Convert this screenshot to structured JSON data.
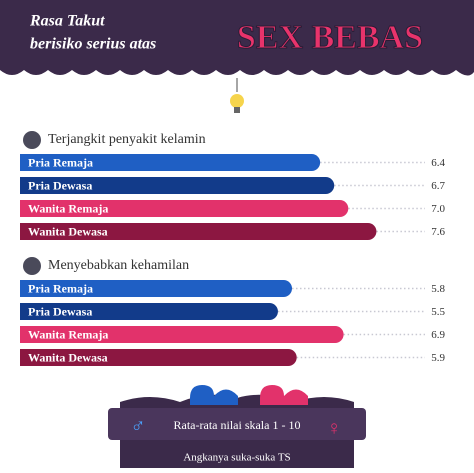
{
  "header": {
    "title_lines": [
      "Rasa Takut",
      "berisiko serius atas"
    ],
    "highlight": "SEX BEBAS"
  },
  "chart_data": [
    {
      "type": "bar",
      "title": "Terjangkit penyakit kelamin",
      "categories": [
        "Pria Remaja",
        "Pria Dewasa",
        "Wanita Remaja",
        "Wanita Dewasa"
      ],
      "values": [
        6.4,
        6.7,
        7,
        7.6
      ],
      "value_labels": [
        "6.4",
        "6.7",
        "7.0",
        "7.6"
      ],
      "colors": [
        "#1f5fc4",
        "#123b8a",
        "#e2326b",
        "#8c1741"
      ]
    },
    {
      "type": "bar",
      "title": "Menyebabkan kehamilan",
      "categories": [
        "Pria Remaja",
        "Pria Dewasa",
        "Wanita Remaja",
        "Wanita Dewasa"
      ],
      "values": [
        5.8,
        5.5,
        6.9,
        5.9
      ],
      "value_labels": [
        "5.8",
        "5.5",
        "6.9",
        "5.9"
      ],
      "colors": [
        "#1f5fc4",
        "#123b8a",
        "#e2326b",
        "#8c1741"
      ]
    }
  ],
  "footer": {
    "caption": "Rata-rata nilai skala 1 - 10",
    "credit": "Angkanya suka-suka TS"
  }
}
